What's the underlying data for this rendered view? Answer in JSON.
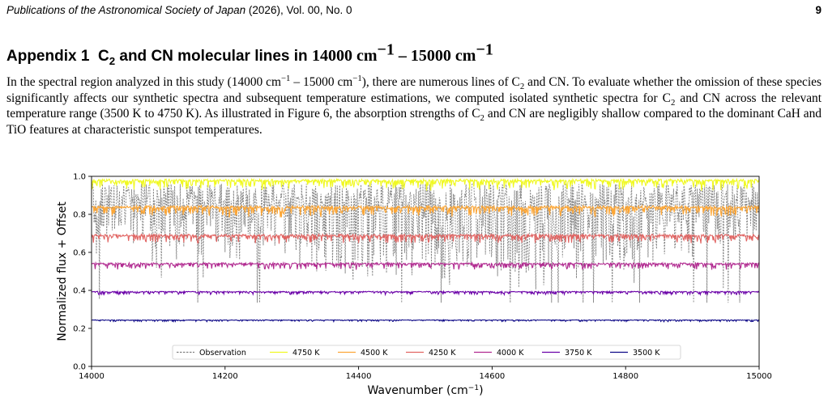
{
  "running_head": {
    "journal": "Publications of the Astronomical Society of Japan",
    "issue": " (2026), Vol. 00, No. 0",
    "page_number": "9"
  },
  "appendix": {
    "number": "Appendix 1",
    "title_pre": "C",
    "title_sub": "2",
    "title_mid": " and CN molecular lines in ",
    "range_a": "14000 cm",
    "range_sup": "−1",
    "range_dash": " – ",
    "range_b": "15000 cm"
  },
  "paragraph": {
    "s1": "In the spectral region analyzed in this study (14000 cm",
    "s2": " – 15000 cm",
    "s3": "), there are numerous lines of C",
    "s4": " and CN.  To evaluate whether the omission of these species significantly affects our synthetic spectra and subsequent temperature estimations, we computed isolated synthetic spectra for C",
    "s5": " and CN across the relevant temperature range (3500 K to 4750 K). As illustrated in Figure 6, the absorption strengths of C",
    "s6": " and CN are negligibly shallow compared to the dominant CaH and TiO features at characteristic sunspot temperatures.",
    "sup": "−1",
    "sub": "2"
  },
  "chart_data": {
    "type": "line",
    "xlabel": "Wavenumber (cm",
    "xlabel_sup": "−1",
    "xlabel_close": ")",
    "ylabel": "Normalized flux + Offset",
    "xlim": [
      14000,
      15000
    ],
    "ylim": [
      0.0,
      1.0
    ],
    "x_ticks": [
      "14000",
      "14200",
      "14400",
      "14600",
      "14800",
      "15000"
    ],
    "y_ticks": [
      "0.0",
      "0.2",
      "0.4",
      "0.6",
      "0.8",
      "1.0"
    ],
    "grid": false,
    "legend_position": "bottom-center",
    "series": [
      {
        "name": "Observation",
        "color": "#808080",
        "style": "dashed",
        "continuum": 0.96,
        "depth": 0.5
      },
      {
        "name": "4750 K",
        "color": "#f0f921",
        "style": "solid",
        "continuum": 0.985,
        "depth": 0.05
      },
      {
        "name": "4500 K",
        "color": "#fca636",
        "style": "solid",
        "continuum": 0.845,
        "depth": 0.05
      },
      {
        "name": "4250 K",
        "color": "#e16462",
        "style": "solid",
        "continuum": 0.695,
        "depth": 0.04
      },
      {
        "name": "4000 K",
        "color": "#b12a90",
        "style": "solid",
        "continuum": 0.545,
        "depth": 0.03
      },
      {
        "name": "3750 K",
        "color": "#6a00a8",
        "style": "solid",
        "continuum": 0.395,
        "depth": 0.015
      },
      {
        "name": "3500 K",
        "color": "#0d0887",
        "style": "solid",
        "continuum": 0.245,
        "depth": 0.008
      }
    ]
  }
}
